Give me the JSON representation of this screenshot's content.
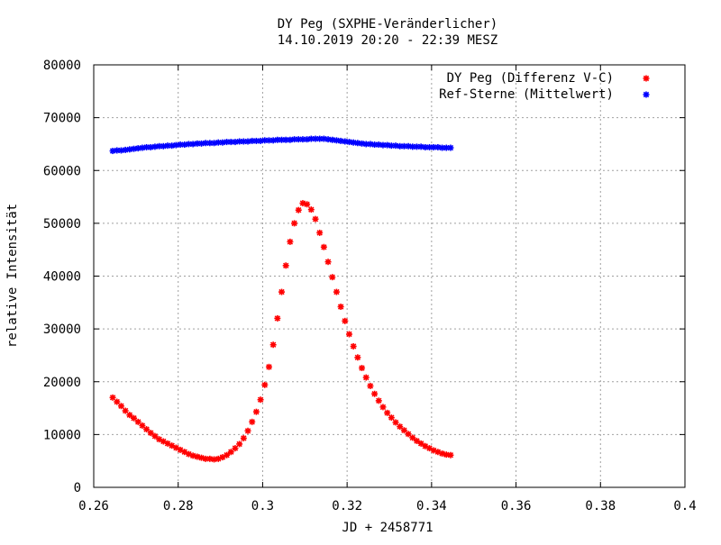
{
  "chart_data": {
    "type": "scatter",
    "title_line1": "DY Peg (SXPHE-Veränderlicher)",
    "title_line2": "14.10.2019 20:20 - 22:39 MESZ",
    "xlabel": "JD + 2458771",
    "ylabel": "relative Intensität",
    "xlim": [
      0.26,
      0.4
    ],
    "ylim": [
      0,
      80000
    ],
    "x_ticks": [
      0.26,
      0.28,
      0.3,
      0.32,
      0.34,
      0.36,
      0.38,
      0.4
    ],
    "x_tick_labels": [
      "0.26",
      "0.28",
      "0.3",
      "0.32",
      "0.34",
      "0.36",
      "0.38",
      "0.4"
    ],
    "y_ticks": [
      0,
      10000,
      20000,
      30000,
      40000,
      50000,
      60000,
      70000,
      80000
    ],
    "y_tick_labels": [
      "0",
      "10000",
      "20000",
      "30000",
      "40000",
      "50000",
      "60000",
      "70000",
      "80000"
    ],
    "grid": true,
    "legend_position": "top-right",
    "series": [
      {
        "name": "DY Peg (Differenz V-C)",
        "color": "#ff0000",
        "marker": "asterisk",
        "points": [
          [
            0.2645,
            17000
          ],
          [
            0.2655,
            16200
          ],
          [
            0.2665,
            15400
          ],
          [
            0.2675,
            14500
          ],
          [
            0.2685,
            13700
          ],
          [
            0.2695,
            13100
          ],
          [
            0.2705,
            12400
          ],
          [
            0.2715,
            11700
          ],
          [
            0.2725,
            11000
          ],
          [
            0.2735,
            10300
          ],
          [
            0.2745,
            9700
          ],
          [
            0.2755,
            9100
          ],
          [
            0.2765,
            8700
          ],
          [
            0.2775,
            8300
          ],
          [
            0.2785,
            7900
          ],
          [
            0.2795,
            7500
          ],
          [
            0.2805,
            7100
          ],
          [
            0.2815,
            6700
          ],
          [
            0.2825,
            6300
          ],
          [
            0.2835,
            6000
          ],
          [
            0.2845,
            5800
          ],
          [
            0.2855,
            5600
          ],
          [
            0.2865,
            5400
          ],
          [
            0.2875,
            5400
          ],
          [
            0.2885,
            5300
          ],
          [
            0.2895,
            5400
          ],
          [
            0.2905,
            5700
          ],
          [
            0.2915,
            6100
          ],
          [
            0.2925,
            6700
          ],
          [
            0.2935,
            7400
          ],
          [
            0.2945,
            8200
          ],
          [
            0.2955,
            9300
          ],
          [
            0.2965,
            10700
          ],
          [
            0.2975,
            12400
          ],
          [
            0.2985,
            14300
          ],
          [
            0.2995,
            16600
          ],
          [
            0.3005,
            19400
          ],
          [
            0.3015,
            22800
          ],
          [
            0.3025,
            27000
          ],
          [
            0.3035,
            32000
          ],
          [
            0.3045,
            37000
          ],
          [
            0.3055,
            42000
          ],
          [
            0.3065,
            46500
          ],
          [
            0.3075,
            50000
          ],
          [
            0.3085,
            52500
          ],
          [
            0.3095,
            53800
          ],
          [
            0.3105,
            53600
          ],
          [
            0.3115,
            52600
          ],
          [
            0.3125,
            50800
          ],
          [
            0.3135,
            48200
          ],
          [
            0.3145,
            45500
          ],
          [
            0.3155,
            42700
          ],
          [
            0.3165,
            39800
          ],
          [
            0.3175,
            37000
          ],
          [
            0.3185,
            34200
          ],
          [
            0.3195,
            31500
          ],
          [
            0.3205,
            29000
          ],
          [
            0.3215,
            26700
          ],
          [
            0.3225,
            24600
          ],
          [
            0.3235,
            22600
          ],
          [
            0.3245,
            20800
          ],
          [
            0.3255,
            19200
          ],
          [
            0.3265,
            17700
          ],
          [
            0.3275,
            16400
          ],
          [
            0.3285,
            15200
          ],
          [
            0.3295,
            14100
          ],
          [
            0.3305,
            13200
          ],
          [
            0.3315,
            12300
          ],
          [
            0.3325,
            11500
          ],
          [
            0.3335,
            10800
          ],
          [
            0.3345,
            10100
          ],
          [
            0.3355,
            9400
          ],
          [
            0.3365,
            8800
          ],
          [
            0.3375,
            8300
          ],
          [
            0.3385,
            7800
          ],
          [
            0.3395,
            7400
          ],
          [
            0.3405,
            7000
          ],
          [
            0.3415,
            6700
          ],
          [
            0.3425,
            6400
          ],
          [
            0.3435,
            6200
          ],
          [
            0.3445,
            6100
          ]
        ]
      },
      {
        "name": "Ref-Sterne (Mittelwert)",
        "color": "#0000ff",
        "marker": "asterisk",
        "points": [
          [
            0.2645,
            63700
          ],
          [
            0.2655,
            63800
          ],
          [
            0.2665,
            63800
          ],
          [
            0.2675,
            63900
          ],
          [
            0.2685,
            64000
          ],
          [
            0.2695,
            64100
          ],
          [
            0.2705,
            64200
          ],
          [
            0.2715,
            64300
          ],
          [
            0.2725,
            64400
          ],
          [
            0.2735,
            64400
          ],
          [
            0.2745,
            64500
          ],
          [
            0.2755,
            64600
          ],
          [
            0.2765,
            64600
          ],
          [
            0.2775,
            64700
          ],
          [
            0.2785,
            64700
          ],
          [
            0.2795,
            64800
          ],
          [
            0.2805,
            64900
          ],
          [
            0.2815,
            64900
          ],
          [
            0.2825,
            65000
          ],
          [
            0.2835,
            65000
          ],
          [
            0.2845,
            65100
          ],
          [
            0.2855,
            65100
          ],
          [
            0.2865,
            65200
          ],
          [
            0.2875,
            65200
          ],
          [
            0.2885,
            65200
          ],
          [
            0.2895,
            65300
          ],
          [
            0.2905,
            65300
          ],
          [
            0.2915,
            65400
          ],
          [
            0.2925,
            65400
          ],
          [
            0.2935,
            65400
          ],
          [
            0.2945,
            65500
          ],
          [
            0.2955,
            65500
          ],
          [
            0.2965,
            65500
          ],
          [
            0.2975,
            65600
          ],
          [
            0.2985,
            65600
          ],
          [
            0.2995,
            65600
          ],
          [
            0.3005,
            65700
          ],
          [
            0.3015,
            65700
          ],
          [
            0.3025,
            65700
          ],
          [
            0.3035,
            65800
          ],
          [
            0.3045,
            65800
          ],
          [
            0.3055,
            65800
          ],
          [
            0.3065,
            65800
          ],
          [
            0.3075,
            65900
          ],
          [
            0.3085,
            65900
          ],
          [
            0.3095,
            65900
          ],
          [
            0.3105,
            65900
          ],
          [
            0.3115,
            66000
          ],
          [
            0.3125,
            66000
          ],
          [
            0.3135,
            66000
          ],
          [
            0.3145,
            66000
          ],
          [
            0.3155,
            65900
          ],
          [
            0.3165,
            65800
          ],
          [
            0.3175,
            65700
          ],
          [
            0.3185,
            65600
          ],
          [
            0.3195,
            65500
          ],
          [
            0.3205,
            65400
          ],
          [
            0.3215,
            65300
          ],
          [
            0.3225,
            65200
          ],
          [
            0.3235,
            65100
          ],
          [
            0.3245,
            65000
          ],
          [
            0.3255,
            65000
          ],
          [
            0.3265,
            64900
          ],
          [
            0.3275,
            64900
          ],
          [
            0.3285,
            64800
          ],
          [
            0.3295,
            64800
          ],
          [
            0.3305,
            64700
          ],
          [
            0.3315,
            64700
          ],
          [
            0.3325,
            64600
          ],
          [
            0.3335,
            64600
          ],
          [
            0.3345,
            64600
          ],
          [
            0.3355,
            64500
          ],
          [
            0.3365,
            64500
          ],
          [
            0.3375,
            64500
          ],
          [
            0.3385,
            64400
          ],
          [
            0.3395,
            64400
          ],
          [
            0.3405,
            64400
          ],
          [
            0.3415,
            64400
          ],
          [
            0.3425,
            64300
          ],
          [
            0.3435,
            64300
          ],
          [
            0.3445,
            64300
          ]
        ]
      }
    ]
  }
}
